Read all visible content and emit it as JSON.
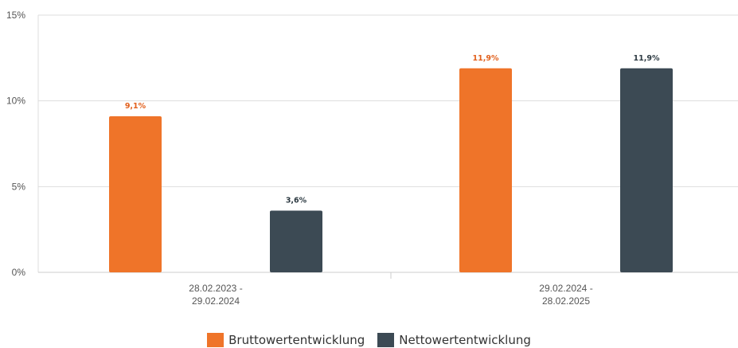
{
  "colors": {
    "brutto": "#ef7429",
    "netto": "#3c4a54",
    "brutto_label": "#e2601c",
    "netto_label": "#2d3a42",
    "grid": "#dddddd"
  },
  "chart_data": {
    "type": "bar",
    "categories": [
      [
        "28.02.2023 -",
        "29.02.2024"
      ],
      [
        "29.02.2024 -",
        "28.02.2025"
      ]
    ],
    "series": [
      {
        "name": "Bruttowertentwicklung",
        "values": [
          9.1,
          11.9
        ],
        "labels": [
          "9,1%",
          "11,9%"
        ]
      },
      {
        "name": "Nettowertentwicklung",
        "values": [
          3.6,
          11.9
        ],
        "labels": [
          "3,6%",
          "11,9%"
        ]
      }
    ],
    "yticks": [
      {
        "value": 0,
        "label": "0%"
      },
      {
        "value": 5,
        "label": "5%"
      },
      {
        "value": 10,
        "label": "10%"
      },
      {
        "value": 15,
        "label": "15%"
      }
    ],
    "ylim": [
      0,
      15
    ],
    "grid": true,
    "legend_position": "bottom"
  }
}
